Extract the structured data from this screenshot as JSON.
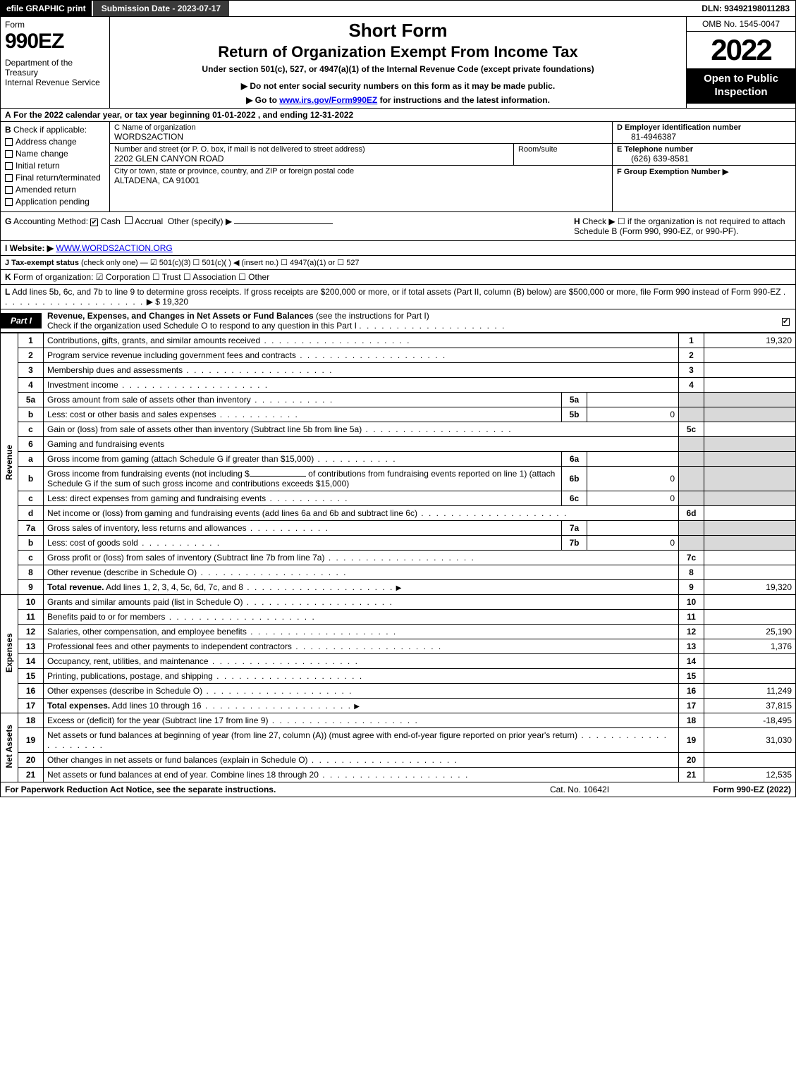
{
  "topbar": {
    "efile": "efile GRAPHIC print",
    "submission": "Submission Date - 2023-07-17",
    "dln": "DLN: 93492198011283"
  },
  "header": {
    "form_word": "Form",
    "form_number": "990EZ",
    "department": "Department of the Treasury\nInternal Revenue Service",
    "short_form": "Short Form",
    "return_title": "Return of Organization Exempt From Income Tax",
    "under_section": "Under section 501(c), 527, or 4947(a)(1) of the Internal Revenue Code (except private foundations)",
    "do_not_enter": "▶ Do not enter social security numbers on this form as it may be made public.",
    "go_to": "▶ Go to www.irs.gov/Form990EZ for instructions and the latest information.",
    "go_to_url": "www.irs.gov/Form990EZ",
    "omb": "OMB No. 1545-0047",
    "year": "2022",
    "inspect": "Open to Public Inspection"
  },
  "line_a": {
    "label": "A",
    "text": "For the 2022 calendar year, or tax year beginning 01-01-2022 , and ending 12-31-2022"
  },
  "section_b": {
    "label": "B",
    "title": "Check if applicable:",
    "items": [
      {
        "label": "Address change",
        "checked": false
      },
      {
        "label": "Name change",
        "checked": false
      },
      {
        "label": "Initial return",
        "checked": false
      },
      {
        "label": "Final return/terminated",
        "checked": false
      },
      {
        "label": "Amended return",
        "checked": false
      },
      {
        "label": "Application pending",
        "checked": false
      }
    ]
  },
  "section_c": {
    "name_lbl": "C Name of organization",
    "name_val": "WORDS2ACTION",
    "addr_lbl": "Number and street (or P. O. box, if mail is not delivered to street address)",
    "addr_val": "2202 GLEN CANYON ROAD",
    "room_lbl": "Room/suite",
    "city_lbl": "City or town, state or province, country, and ZIP or foreign postal code",
    "city_val": "ALTADENA, CA  91001"
  },
  "section_def": {
    "d_lbl": "D Employer identification number",
    "d_val": "81-4946387",
    "e_lbl": "E Telephone number",
    "e_val": "(626) 639-8581",
    "f_lbl": "F Group Exemption Number  ▶",
    "f_val": ""
  },
  "line_g": {
    "label": "G",
    "text": "Accounting Method:",
    "cash": "Cash",
    "accrual": "Accrual",
    "other": "Other (specify) ▶"
  },
  "line_h": {
    "label": "H",
    "text": "Check ▶  ☐  if the organization is not required to attach Schedule B (Form 990, 990-EZ, or 990-PF)."
  },
  "line_i": {
    "label": "I Website: ▶",
    "url": "WWW.WORDS2ACTION.ORG"
  },
  "line_j": {
    "label": "J Tax-exempt status",
    "text": "(check only one) — ☑ 501(c)(3)  ☐ 501(c)(  ) ◀ (insert no.)  ☐ 4947(a)(1) or  ☐ 527"
  },
  "line_k": {
    "label": "K",
    "text": "Form of organization:  ☑ Corporation  ☐ Trust  ☐ Association  ☐ Other"
  },
  "line_l": {
    "label": "L",
    "text": "Add lines 5b, 6c, and 7b to line 9 to determine gross receipts. If gross receipts are $200,000 or more, or if total assets (Part II, column (B) below) are $500,000 or more, file Form 990 instead of Form 990-EZ",
    "arrow": "▶ $",
    "value": "19,320"
  },
  "part1": {
    "tab": "Part I",
    "title": "Revenue, Expenses, and Changes in Net Assets or Fund Balances",
    "title_suffix": "(see the instructions for Part I)",
    "check_text": "Check if the organization used Schedule O to respond to any question in this Part I",
    "checked": true
  },
  "vlabels": {
    "revenue": "Revenue",
    "expenses": "Expenses",
    "netassets": "Net Assets"
  },
  "rows": [
    {
      "n": "1",
      "desc": "Contributions, gifts, grants, and similar amounts received",
      "rn": "1",
      "rv": "19,320"
    },
    {
      "n": "2",
      "desc": "Program service revenue including government fees and contracts",
      "rn": "2",
      "rv": ""
    },
    {
      "n": "3",
      "desc": "Membership dues and assessments",
      "rn": "3",
      "rv": ""
    },
    {
      "n": "4",
      "desc": "Investment income",
      "rn": "4",
      "rv": ""
    }
  ],
  "row5a": {
    "n": "5a",
    "desc": "Gross amount from sale of assets other than inventory",
    "in": "5a",
    "iv": ""
  },
  "row5b": {
    "n": "b",
    "desc": "Less: cost or other basis and sales expenses",
    "in": "5b",
    "iv": "0"
  },
  "row5c": {
    "n": "c",
    "desc": "Gain or (loss) from sale of assets other than inventory (Subtract line 5b from line 5a)",
    "rn": "5c",
    "rv": ""
  },
  "row6": {
    "n": "6",
    "desc": "Gaming and fundraising events"
  },
  "row6a": {
    "n": "a",
    "desc": "Gross income from gaming (attach Schedule G if greater than $15,000)",
    "in": "6a",
    "iv": ""
  },
  "row6b": {
    "n": "b",
    "desc1": "Gross income from fundraising events (not including $",
    "desc2": "of contributions from fundraising events reported on line 1) (attach Schedule G if the sum of such gross income and contributions exceeds $15,000)",
    "in": "6b",
    "iv": "0"
  },
  "row6c": {
    "n": "c",
    "desc": "Less: direct expenses from gaming and fundraising events",
    "in": "6c",
    "iv": "0"
  },
  "row6d": {
    "n": "d",
    "desc": "Net income or (loss) from gaming and fundraising events (add lines 6a and 6b and subtract line 6c)",
    "rn": "6d",
    "rv": ""
  },
  "row7a": {
    "n": "7a",
    "desc": "Gross sales of inventory, less returns and allowances",
    "in": "7a",
    "iv": ""
  },
  "row7b": {
    "n": "b",
    "desc": "Less: cost of goods sold",
    "in": "7b",
    "iv": "0"
  },
  "row7c": {
    "n": "c",
    "desc": "Gross profit or (loss) from sales of inventory (Subtract line 7b from line 7a)",
    "rn": "7c",
    "rv": ""
  },
  "row8": {
    "n": "8",
    "desc": "Other revenue (describe in Schedule O)",
    "rn": "8",
    "rv": ""
  },
  "row9": {
    "n": "9",
    "desc": "Total revenue. Add lines 1, 2, 3, 4, 5c, 6d, 7c, and 8",
    "rn": "9",
    "rv": "19,320",
    "bold": true,
    "arrow": true
  },
  "exp_rows": [
    {
      "n": "10",
      "desc": "Grants and similar amounts paid (list in Schedule O)",
      "rn": "10",
      "rv": ""
    },
    {
      "n": "11",
      "desc": "Benefits paid to or for members",
      "rn": "11",
      "rv": ""
    },
    {
      "n": "12",
      "desc": "Salaries, other compensation, and employee benefits",
      "rn": "12",
      "rv": "25,190"
    },
    {
      "n": "13",
      "desc": "Professional fees and other payments to independent contractors",
      "rn": "13",
      "rv": "1,376"
    },
    {
      "n": "14",
      "desc": "Occupancy, rent, utilities, and maintenance",
      "rn": "14",
      "rv": ""
    },
    {
      "n": "15",
      "desc": "Printing, publications, postage, and shipping",
      "rn": "15",
      "rv": ""
    },
    {
      "n": "16",
      "desc": "Other expenses (describe in Schedule O)",
      "rn": "16",
      "rv": "11,249"
    },
    {
      "n": "17",
      "desc": "Total expenses. Add lines 10 through 16",
      "rn": "17",
      "rv": "37,815",
      "bold": true,
      "arrow": true
    }
  ],
  "na_rows": [
    {
      "n": "18",
      "desc": "Excess or (deficit) for the year (Subtract line 17 from line 9)",
      "rn": "18",
      "rv": "-18,495"
    },
    {
      "n": "19",
      "desc": "Net assets or fund balances at beginning of year (from line 27, column (A)) (must agree with end-of-year figure reported on prior year's return)",
      "rn": "19",
      "rv": "31,030"
    },
    {
      "n": "20",
      "desc": "Other changes in net assets or fund balances (explain in Schedule O)",
      "rn": "20",
      "rv": ""
    },
    {
      "n": "21",
      "desc": "Net assets or fund balances at end of year. Combine lines 18 through 20",
      "rn": "21",
      "rv": "12,535"
    }
  ],
  "footer": {
    "left": "For Paperwork Reduction Act Notice, see the separate instructions.",
    "mid": "Cat. No. 10642I",
    "right": "Form 990-EZ (2022)"
  },
  "colors": {
    "black": "#000000",
    "white": "#ffffff",
    "darkbar": "#3a3a3a",
    "shade": "#d9d9d9",
    "link": "#0000ee"
  }
}
